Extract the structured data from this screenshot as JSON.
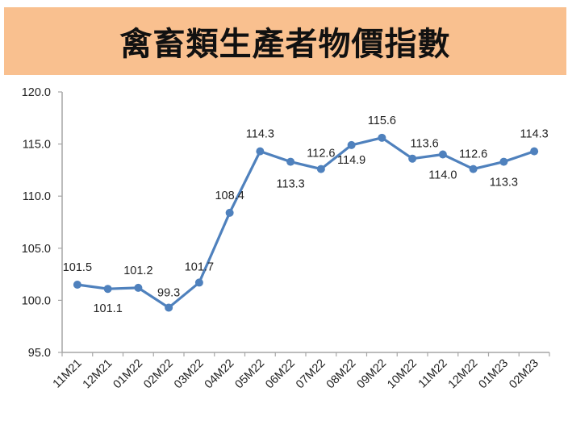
{
  "header": {
    "title": "禽畜類生產者物價指數",
    "background": "#F9C08F"
  },
  "chart_data": {
    "type": "line",
    "title": "禽畜類生產者物價指數",
    "xlabel": "",
    "ylabel": "",
    "categories": [
      "11M21",
      "12M21",
      "01M22",
      "02M22",
      "03M22",
      "04M22",
      "05M22",
      "06M22",
      "07M22",
      "08M22",
      "09M22",
      "10M22",
      "11M22",
      "12M22",
      "01M23",
      "02M23"
    ],
    "series": [
      {
        "name": "禽畜類生產者物價指數",
        "color": "#4F81BD",
        "values": [
          101.5,
          101.1,
          101.2,
          99.3,
          101.7,
          108.4,
          114.3,
          113.3,
          112.6,
          114.9,
          115.6,
          113.6,
          114.0,
          112.6,
          113.3,
          114.3
        ]
      }
    ],
    "data_labels": [
      "101.5",
      "101.1",
      "101.2",
      "99.3",
      "101.7",
      "108.4",
      "114.3",
      "113.3",
      "112.6",
      "114.9",
      "115.6",
      "113.6",
      "114.0",
      "112.6",
      "113.3",
      "114.3"
    ],
    "yticks": [
      "95.0",
      "100.0",
      "105.0",
      "110.0",
      "115.0",
      "120.0"
    ],
    "ylim": [
      95,
      120
    ],
    "grid": false,
    "legend": "none"
  }
}
